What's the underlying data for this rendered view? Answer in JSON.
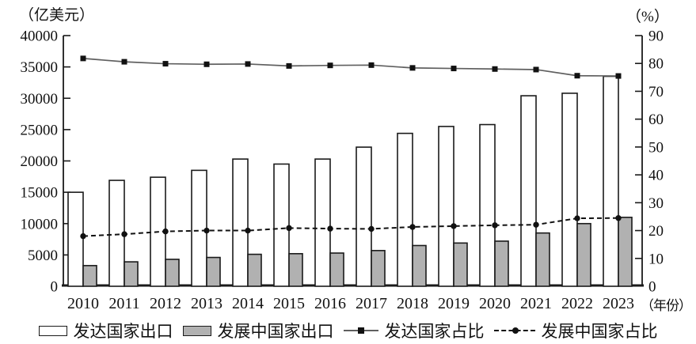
{
  "chart_data": {
    "type": "combo-bar-line",
    "title": "",
    "left_axis": {
      "title": "（亿美元）",
      "min": 0,
      "max": 40000,
      "tick_step": 5000,
      "ticks": [
        0,
        5000,
        10000,
        15000,
        20000,
        25000,
        30000,
        35000,
        40000
      ]
    },
    "right_axis": {
      "title": "（%）",
      "min": 0,
      "max": 90,
      "tick_step": 10,
      "ticks": [
        0,
        10,
        20,
        30,
        40,
        50,
        60,
        70,
        80,
        90
      ]
    },
    "x_axis": {
      "title": "（年份）",
      "categories": [
        "2010",
        "2011",
        "2012",
        "2013",
        "2014",
        "2015",
        "2016",
        "2017",
        "2018",
        "2019",
        "2020",
        "2021",
        "2022",
        "2023"
      ]
    },
    "series": [
      {
        "name": "发达国家出口",
        "type": "bar",
        "axis": "left",
        "style": "white-outline",
        "values": [
          15000,
          16900,
          17400,
          18500,
          20300,
          19500,
          20300,
          22200,
          24400,
          25500,
          25800,
          30400,
          30800,
          33500
        ]
      },
      {
        "name": "发展中国家出口",
        "type": "bar",
        "axis": "left",
        "style": "gray-fill",
        "values": [
          3300,
          3900,
          4300,
          4600,
          5100,
          5200,
          5300,
          5700,
          6500,
          6900,
          7200,
          8500,
          10000,
          11000
        ]
      },
      {
        "name": "发达国家占比",
        "type": "line",
        "axis": "right",
        "style": "solid-square-marker",
        "values": [
          81.8,
          80.6,
          79.9,
          79.7,
          79.8,
          79.1,
          79.3,
          79.4,
          78.4,
          78.2,
          78.0,
          77.8,
          75.6,
          75.5
        ]
      },
      {
        "name": "发展中国家占比",
        "type": "line",
        "axis": "right",
        "style": "dashed-dot-marker",
        "values": [
          18.0,
          18.7,
          19.7,
          20.0,
          20.0,
          20.9,
          20.7,
          20.6,
          21.3,
          21.6,
          21.9,
          22.1,
          24.4,
          24.5
        ]
      }
    ],
    "colors": {
      "bar_white_fill": "#ffffff",
      "bar_gray_fill": "#b1b1b1",
      "outline": "#1a1a1a",
      "solid_line": "#5f5f5f",
      "dashed_line": "#111111",
      "marker": "#111111"
    },
    "legend_position": "bottom",
    "grid": "off"
  }
}
